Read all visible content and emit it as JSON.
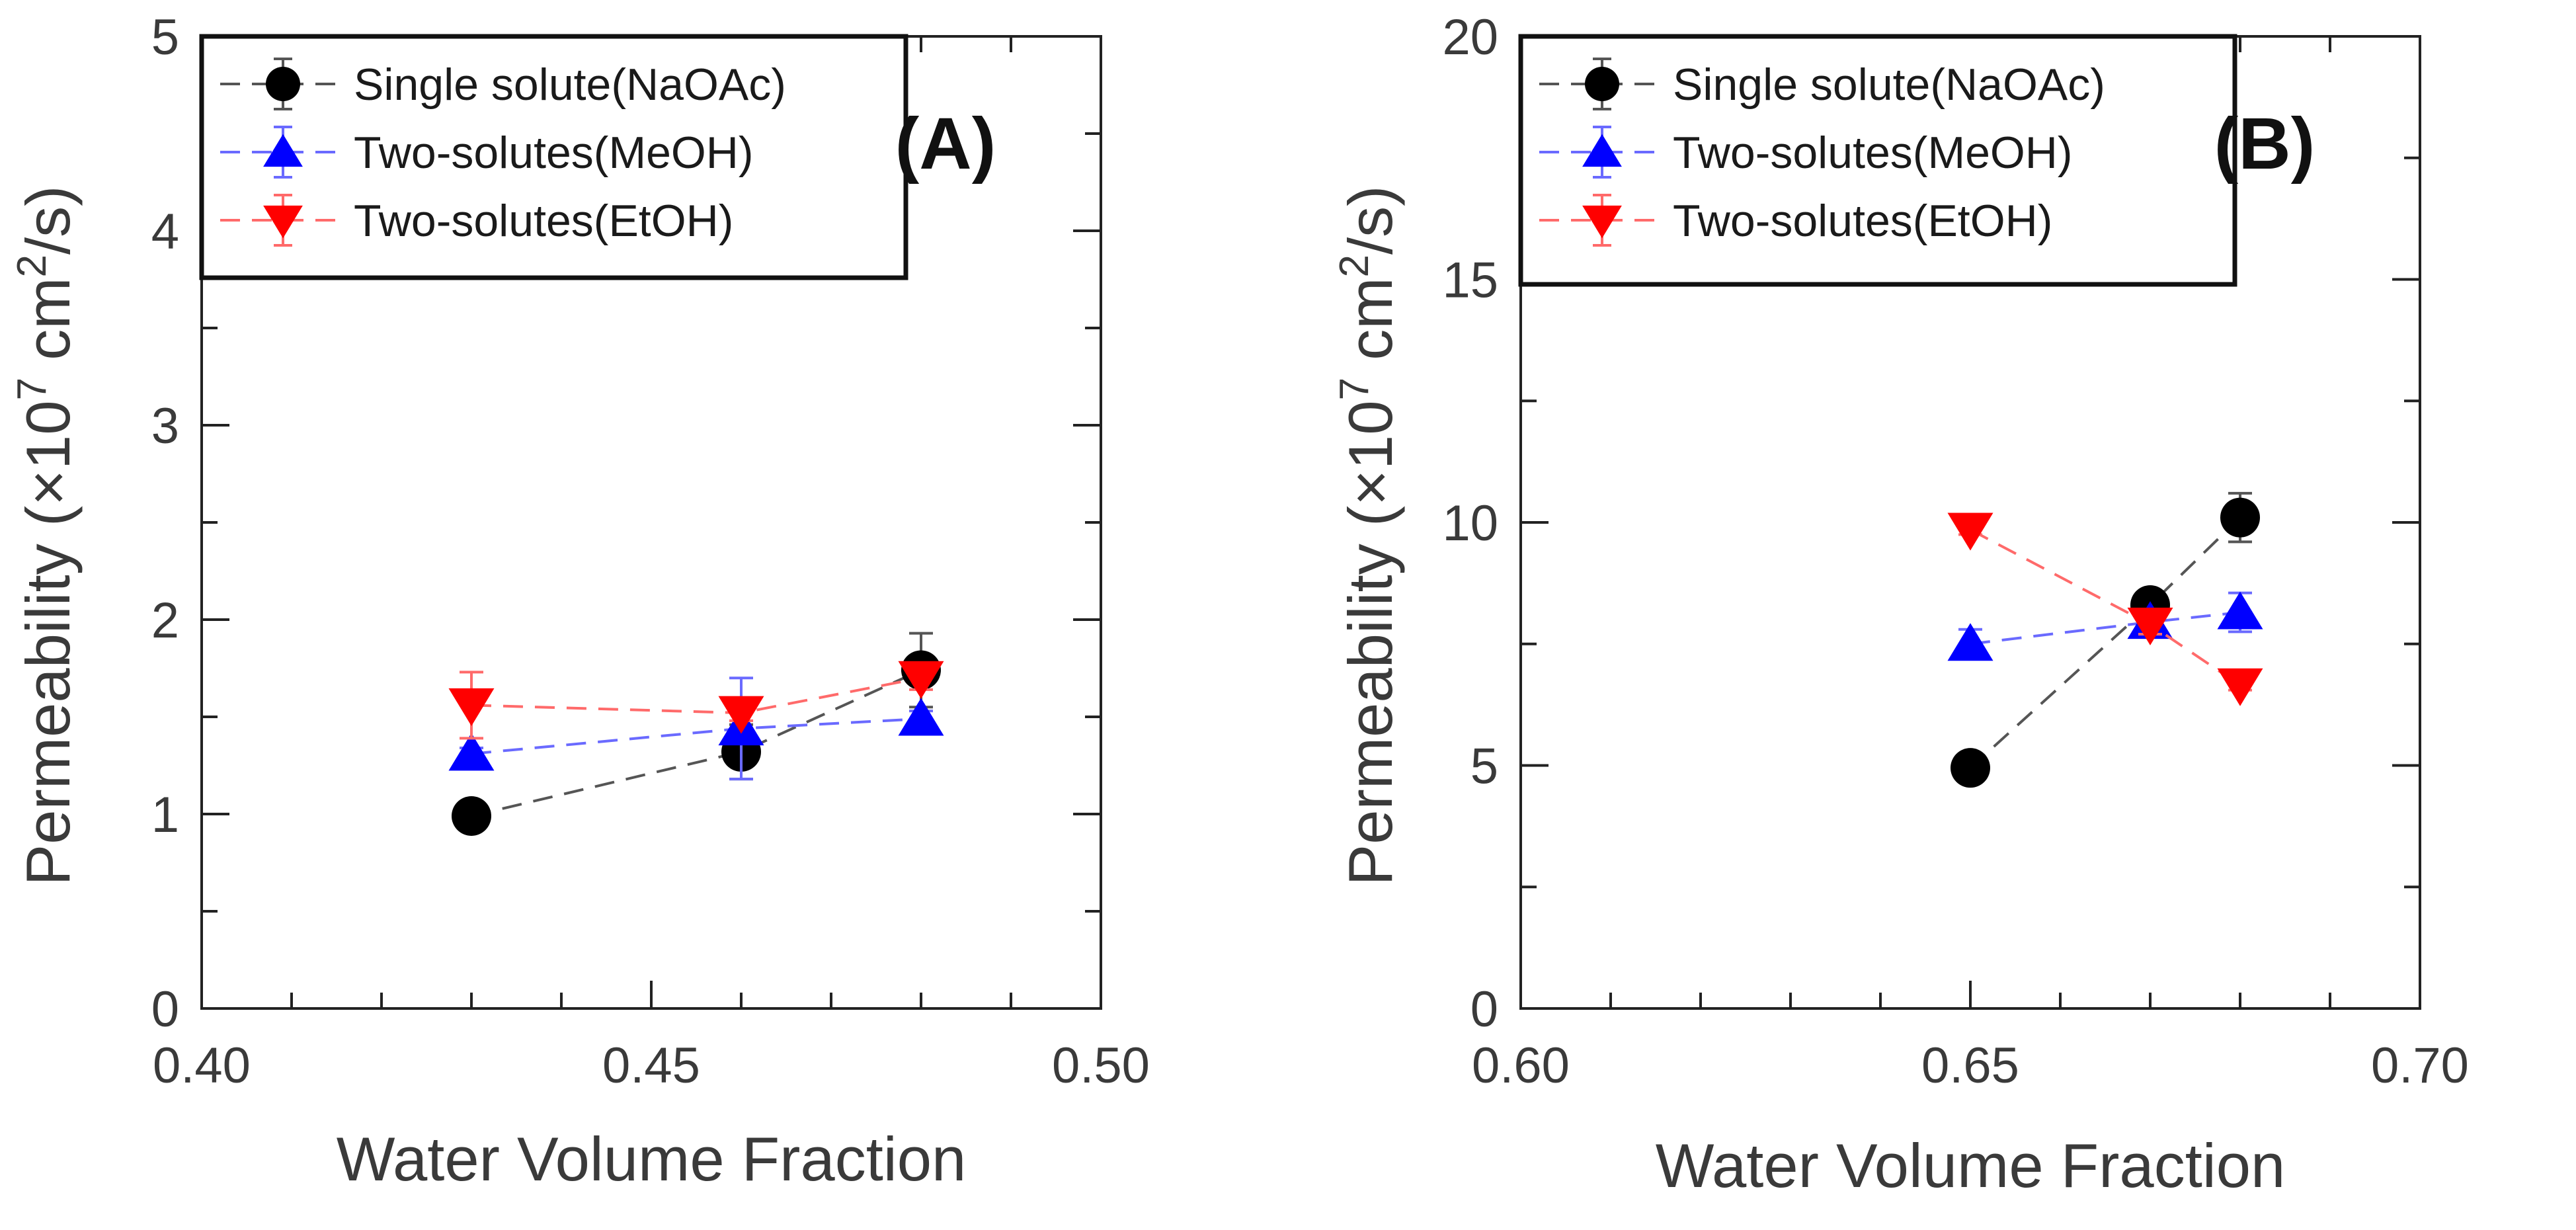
{
  "chart_data": [
    {
      "type": "line",
      "panel_label": "(A)",
      "xlabel": "Water Volume Fraction",
      "ylabel": "Permeability (×10",
      "ylabel_exp": "7",
      "ylabel_unit": " cm",
      "ylabel_unit_exp": "2",
      "ylabel_tail": "/s)",
      "xlim": [
        0.4,
        0.5
      ],
      "ylim": [
        0,
        5
      ],
      "xticks": [
        "0.40",
        "0.45",
        "0.50"
      ],
      "yticks": [
        "0",
        "1",
        "2",
        "3",
        "4",
        "5"
      ],
      "legend_position": "top-left",
      "series": [
        {
          "name": "Single solute(NaOAc)",
          "marker": "circle",
          "color": "#000000",
          "line_color": "#555555",
          "x": [
            0.43,
            0.46,
            0.48
          ],
          "y": [
            0.99,
            1.32,
            1.74
          ],
          "err": [
            0.03,
            0.14,
            0.19
          ]
        },
        {
          "name": "Two-solutes(MeOH)",
          "marker": "triangle-up",
          "color": "#0000ff",
          "line_color": "#6a6aff",
          "x": [
            0.43,
            0.46,
            0.48
          ],
          "y": [
            1.31,
            1.44,
            1.49
          ],
          "err": [
            0.03,
            0.26,
            0.04
          ]
        },
        {
          "name": "Two-solutes(EtOH)",
          "marker": "triangle-down",
          "color": "#ff0000",
          "line_color": "#ff6a6a",
          "x": [
            0.43,
            0.46,
            0.48
          ],
          "y": [
            1.56,
            1.52,
            1.7
          ],
          "err": [
            0.17,
            0.04,
            0.06
          ]
        }
      ]
    },
    {
      "type": "line",
      "panel_label": "(B)",
      "xlabel": "Water Volume Fraction",
      "ylabel": "Permeability (×10",
      "ylabel_exp": "7",
      "ylabel_unit": " cm",
      "ylabel_unit_exp": "2",
      "ylabel_tail": "/s)",
      "xlim": [
        0.6,
        0.7
      ],
      "ylim": [
        0,
        20
      ],
      "xticks": [
        "0.60",
        "0.65",
        "0.70"
      ],
      "yticks": [
        "0",
        "5",
        "10",
        "15",
        "20"
      ],
      "legend_position": "top-left",
      "series": [
        {
          "name": "Single solute(NaOAc)",
          "marker": "circle",
          "color": "#000000",
          "line_color": "#555555",
          "x": [
            0.65,
            0.67,
            0.68
          ],
          "y": [
            4.95,
            8.3,
            10.1
          ],
          "err": [
            0.1,
            0.2,
            0.5
          ]
        },
        {
          "name": "Two-solutes(MeOH)",
          "marker": "triangle-up",
          "color": "#0000ff",
          "line_color": "#6a6aff",
          "x": [
            0.65,
            0.67,
            0.68
          ],
          "y": [
            7.5,
            7.95,
            8.15
          ],
          "err": [
            0.3,
            0.2,
            0.4
          ]
        },
        {
          "name": "Two-solutes(EtOH)",
          "marker": "triangle-down",
          "color": "#ff0000",
          "line_color": "#ff6a6a",
          "x": [
            0.65,
            0.67,
            0.68
          ],
          "y": [
            9.85,
            7.9,
            6.65
          ],
          "err": [
            0.1,
            0.2,
            0.1
          ]
        }
      ]
    }
  ]
}
